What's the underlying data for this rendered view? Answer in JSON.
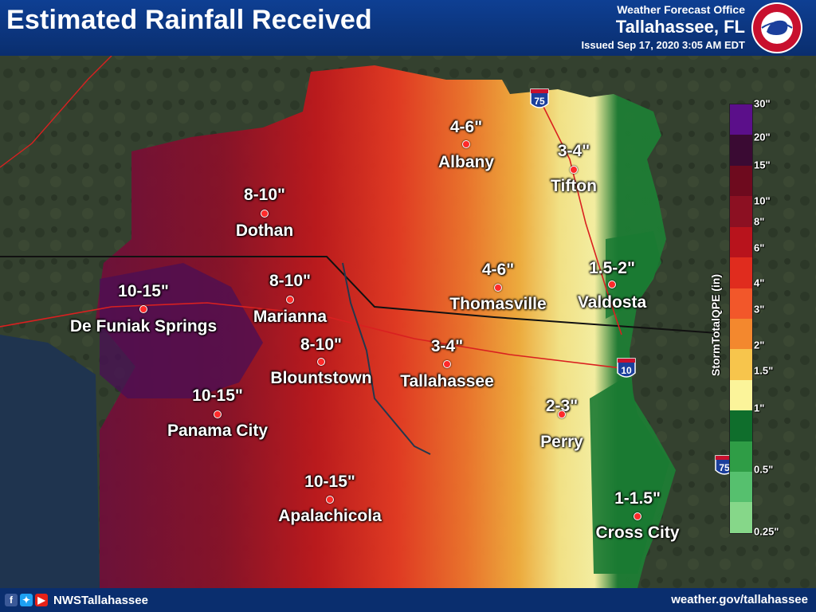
{
  "header": {
    "title": "Estimated Rainfall Received",
    "office_line1": "Weather Forecast Office",
    "office_line2": "Tallahassee, FL",
    "issued": "Issued Sep 17, 2020 3:05 AM EDT"
  },
  "logo": {
    "icon": "nws-logo-icon",
    "text": "NATIONAL WEATHER SERVICE"
  },
  "footer": {
    "icons": [
      "facebook-icon",
      "twitter-icon",
      "youtube-icon"
    ],
    "handle": "NWSTallahassee",
    "site": "weather.gov/tallahassee"
  },
  "interstates": [
    {
      "label": "75",
      "name": "interstate-75-shield"
    },
    {
      "label": "10",
      "name": "interstate-10-shield"
    },
    {
      "label": "75",
      "name": "interstate-75-shield-south"
    }
  ],
  "legend": {
    "title": "StormTotalQPE (in)",
    "ticks": [
      "30\"",
      "20\"",
      "15\"",
      "10\"",
      "8\"",
      "6\"",
      "4\"",
      "3\"",
      "2\"",
      "1.5\"",
      "1\"",
      "0.5\"",
      "0.25\""
    ],
    "colors": [
      "#5b0f8a",
      "#3a0a33",
      "#6e0a1e",
      "#8c1022",
      "#b8131c",
      "#e02c1e",
      "#f2572a",
      "#f3882e",
      "#f7c54c",
      "#fbf49a",
      "#0f6e2c",
      "#2f9d46",
      "#56c06e",
      "#86d789"
    ]
  },
  "locations": [
    {
      "city": "Albany",
      "amount": "4-6\""
    },
    {
      "city": "Tifton",
      "amount": "3-4\""
    },
    {
      "city": "Dothan",
      "amount": "8-10\""
    },
    {
      "city": "Thomasville",
      "amount": "4-6\""
    },
    {
      "city": "Valdosta",
      "amount": "1.5-2\""
    },
    {
      "city": "De Funiak Springs",
      "amount": "10-15\""
    },
    {
      "city": "Marianna",
      "amount": "8-10\""
    },
    {
      "city": "Blountstown",
      "amount": "8-10\""
    },
    {
      "city": "Tallahassee",
      "amount": "3-4\""
    },
    {
      "city": "Panama City",
      "amount": "10-15\""
    },
    {
      "city": "Perry",
      "amount": "2-3\""
    },
    {
      "city": "Apalachicola",
      "amount": "10-15\""
    },
    {
      "city": "Cross City",
      "amount": "1-1.5\""
    }
  ]
}
